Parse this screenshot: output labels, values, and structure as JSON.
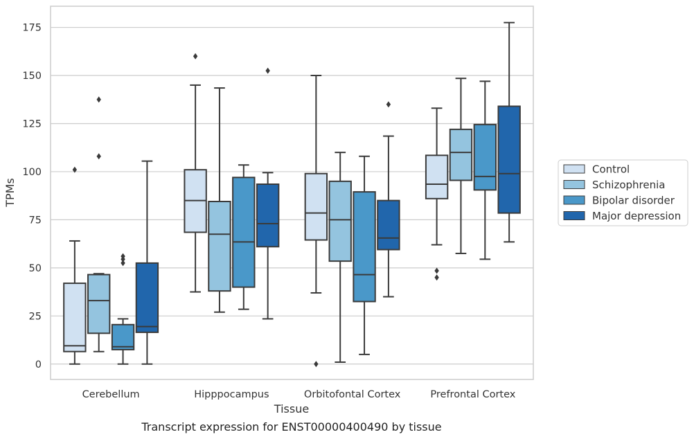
{
  "chart_data": {
    "type": "box",
    "caption": "Transcript expression for ENST00000400490 by tissue",
    "xlabel": "Tissue",
    "ylabel": "TPMs",
    "ylim": [
      -8,
      186
    ],
    "yticks": [
      0,
      25,
      50,
      75,
      100,
      125,
      150,
      175
    ],
    "grid": "horizontal",
    "legend_position": "right",
    "categories": [
      "Cerebellum",
      "Hipppocampus",
      "Orbitofontal Cortex",
      "Prefrontal Cortex"
    ],
    "series": [
      {
        "name": "Control",
        "color": "#d0e1f2",
        "boxes": [
          {
            "whislo": 0,
            "q1": 6.5,
            "med": 9.5,
            "q3": 42,
            "whishi": 64,
            "fliers": [
              101
            ]
          },
          {
            "whislo": 37.5,
            "q1": 68.5,
            "med": 85,
            "q3": 101,
            "whishi": 145,
            "fliers": [
              160
            ]
          },
          {
            "whislo": 37,
            "q1": 64.5,
            "med": 78.5,
            "q3": 99,
            "whishi": 150,
            "fliers": [
              0
            ]
          },
          {
            "whislo": 62,
            "q1": 86,
            "med": 93.5,
            "q3": 108.5,
            "whishi": 133,
            "fliers": [
              45,
              48.5
            ]
          }
        ]
      },
      {
        "name": "Schizophrenia",
        "color": "#94c4df",
        "boxes": [
          {
            "whislo": 6.5,
            "q1": 16,
            "med": 33,
            "q3": 46.5,
            "whishi": 47,
            "fliers": [
              108,
              137.5
            ]
          },
          {
            "whislo": 27,
            "q1": 38,
            "med": 67.5,
            "q3": 84.5,
            "whishi": 143.5,
            "fliers": []
          },
          {
            "whislo": 1,
            "q1": 53.5,
            "med": 75,
            "q3": 95,
            "whishi": 110,
            "fliers": []
          },
          {
            "whislo": 57.5,
            "q1": 95.5,
            "med": 110,
            "q3": 122,
            "whishi": 148.5,
            "fliers": []
          }
        ]
      },
      {
        "name": "Bipolar disorder",
        "color": "#4a98c9",
        "boxes": [
          {
            "whislo": 0,
            "q1": 7.5,
            "med": 9,
            "q3": 20.5,
            "whishi": 23.5,
            "fliers": [
              52.5,
              54.5,
              56
            ]
          },
          {
            "whislo": 28.5,
            "q1": 40,
            "med": 63.5,
            "q3": 97,
            "whishi": 103.5,
            "fliers": []
          },
          {
            "whislo": 5,
            "q1": 32.5,
            "med": 46.5,
            "q3": 89.5,
            "whishi": 108,
            "fliers": []
          },
          {
            "whislo": 54.5,
            "q1": 90.5,
            "med": 97.5,
            "q3": 124.5,
            "whishi": 147,
            "fliers": []
          }
        ]
      },
      {
        "name": "Major depression",
        "color": "#2166ac",
        "boxes": [
          {
            "whislo": 0,
            "q1": 16.5,
            "med": 19.5,
            "q3": 52.5,
            "whishi": 105.5,
            "fliers": []
          },
          {
            "whislo": 23.5,
            "q1": 61,
            "med": 73,
            "q3": 93.5,
            "whishi": 99.5,
            "fliers": [
              152.5
            ]
          },
          {
            "whislo": 35,
            "q1": 59.5,
            "med": 65.5,
            "q3": 85,
            "whishi": 118.5,
            "fliers": [
              135
            ]
          },
          {
            "whislo": 63.5,
            "q1": 78.5,
            "med": 99,
            "q3": 134,
            "whishi": 177.5,
            "fliers": []
          }
        ]
      }
    ]
  }
}
